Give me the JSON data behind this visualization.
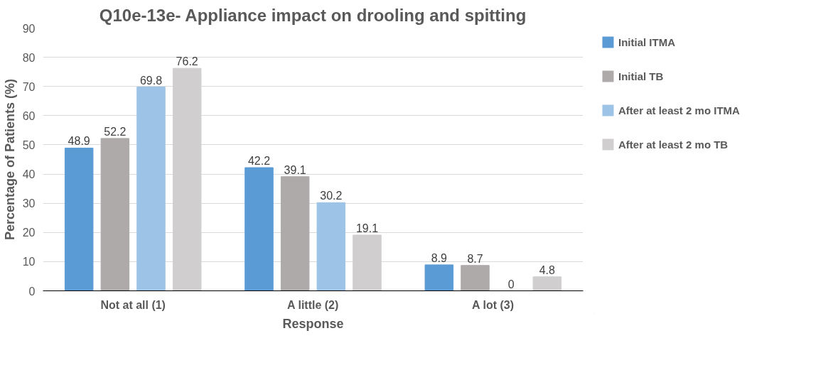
{
  "chart_data": {
    "type": "bar",
    "title": "Q10e-13e- Appliance impact on drooling and spitting",
    "xlabel": "Response",
    "ylabel": "Percentage of Patients (%)",
    "categories": [
      "Not at all (1)",
      "A little (2)",
      "A lot (3)"
    ],
    "series": [
      {
        "name": "Initial ITMA",
        "color": "#5b9bd5",
        "values": [
          48.9,
          42.2,
          8.9
        ]
      },
      {
        "name": "Initial TB",
        "color": "#aeaaaa",
        "values": [
          52.2,
          39.1,
          8.7
        ]
      },
      {
        "name": "After at least 2 mo ITMA",
        "color": "#9dc3e6",
        "values": [
          69.8,
          30.2,
          0
        ]
      },
      {
        "name": "After at least 2 mo TB",
        "color": "#d0cece",
        "values": [
          76.2,
          19.1,
          4.8
        ]
      }
    ],
    "ylim": [
      0,
      90
    ],
    "yticks": [
      0,
      10,
      20,
      30,
      40,
      50,
      60,
      70,
      80,
      90
    ],
    "grid": "y",
    "legend": "right",
    "data_labels": true
  }
}
